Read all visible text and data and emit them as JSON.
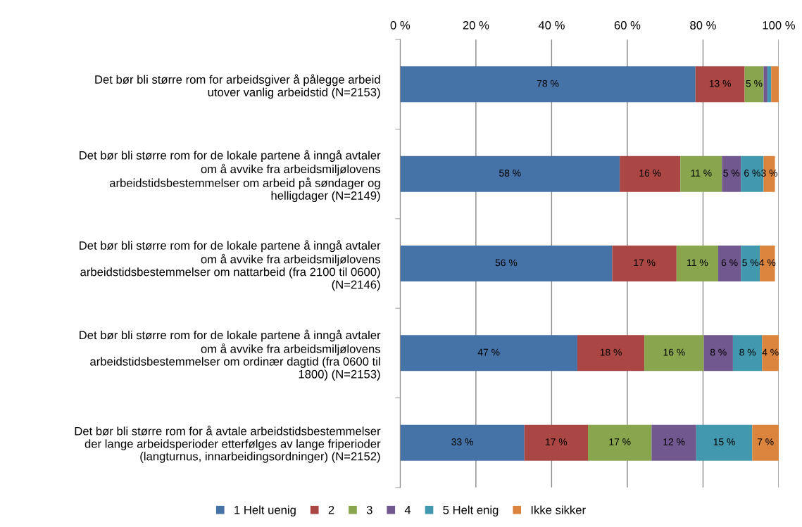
{
  "chart_data": {
    "type": "bar",
    "orientation": "horizontal",
    "stacked": true,
    "categories": [
      "Det bør bli større rom for arbeidsgiver å pålegge arbeid\nutover vanlig arbeidstid (N=2153)",
      "Det bør bli større rom for de lokale partene å inngå avtaler\nom å avvike fra arbeidsmiljølovens\narbeidstidsbestemmelser om arbeid på søndager og\nhelligdager (N=2149)",
      "Det bør bli større rom for de lokale partene å inngå avtaler\nom å avvike fra arbeidsmiljølovens\narbeidstidsbestemmelser om nattarbeid (fra 2100 til 0600)\n(N=2146)",
      "Det bør bli større rom for de lokale partene å inngå avtaler\nom å avvike fra arbeidsmiljølovens\narbeidstidsbestemmelser om ordinær dagtid (fra 0600 til\n1800) (N=2153)",
      "Det bør bli større rom for å avtale arbeidstidsbestemmelser\nder lange arbeidsperioder etterfølges av lange friperioder\n(langturnus, innarbeidingsordninger) (N=2152)"
    ],
    "series": [
      {
        "name": "1 Helt uenig",
        "color": "#4572a7",
        "values": [
          78,
          58,
          56,
          46.8,
          32.8
        ],
        "value_labels": [
          "78 %",
          "58 %",
          "56 %",
          "47 %",
          "33 %"
        ]
      },
      {
        "name": "2",
        "color": "#aa4643",
        "values": [
          13,
          16,
          17,
          17.7,
          16.8
        ],
        "value_labels": [
          "13 %",
          "16 %",
          "17 %",
          "18 %",
          "17 %"
        ]
      },
      {
        "name": "3",
        "color": "#89a54e",
        "values": [
          5,
          11,
          11,
          15.7,
          16.8
        ],
        "value_labels": [
          "5 %",
          "11 %",
          "11 %",
          "16 %",
          "17 %"
        ]
      },
      {
        "name": "4",
        "color": "#71588f",
        "values": [
          1,
          5,
          6,
          7.7,
          11.8
        ],
        "value_labels": [
          null,
          "5 %",
          "6 %",
          "8 %",
          "12 %"
        ]
      },
      {
        "name": "5 Helt enig",
        "color": "#4198af",
        "values": [
          1,
          6,
          5,
          7.7,
          14.8
        ],
        "value_labels": [
          null,
          "6 %",
          "5 %",
          "8 %",
          "15 %"
        ]
      },
      {
        "name": "Ikke sikker",
        "color": "#db843d",
        "values": [
          2,
          3,
          4,
          4.4,
          7.0
        ],
        "value_labels": [
          null,
          "3 %",
          "4 %",
          "4 %",
          "7 %"
        ]
      }
    ],
    "xlim": [
      0,
      100
    ],
    "xticks": [
      {
        "value": 0,
        "label": "0 %"
      },
      {
        "value": 20,
        "label": "20 %"
      },
      {
        "value": 40,
        "label": "40 %"
      },
      {
        "value": 60,
        "label": "60 %"
      },
      {
        "value": 80,
        "label": "80 %"
      },
      {
        "value": 100,
        "label": "100 %"
      }
    ],
    "grid": "x",
    "legend": "bottom"
  }
}
